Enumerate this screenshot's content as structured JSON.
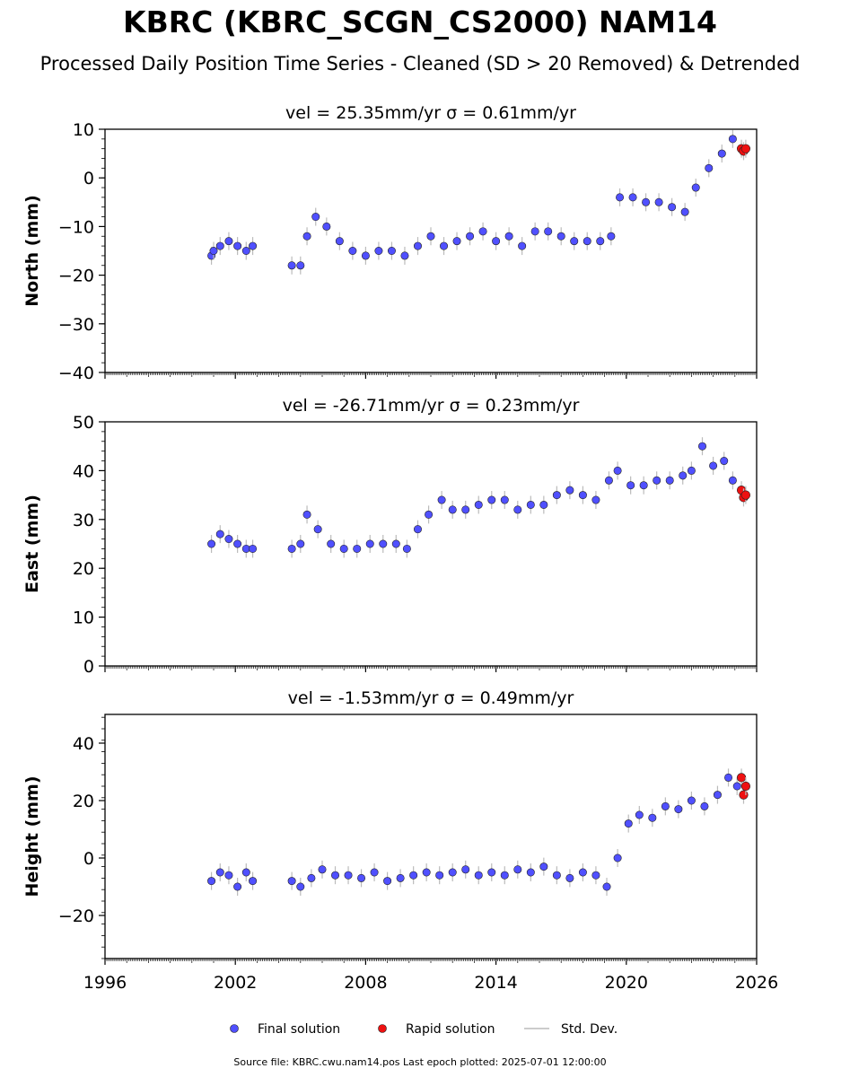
{
  "title": "KBRC (KBRC_SCGN_CS2000) NAM14",
  "subtitle": "Processed Daily Position Time Series - Cleaned (SD > 20 Removed) & Detrended",
  "footer": "Source file: KBRC.cwu.nam14.pos  Last epoch plotted: 2025-07-01 12:00:00",
  "legend": {
    "final": "Final solution",
    "rapid": "Rapid solution",
    "std": "Std. Dev."
  },
  "colors": {
    "final": "#5050ff",
    "rapid": "#ee1111",
    "std": "#bbbbbb",
    "edge": "#222222"
  },
  "chart_data": [
    {
      "type": "scatter",
      "ylabel": "North (mm)",
      "panel_title": "vel = 25.35mm/yr   σ = 0.61mm/yr",
      "xlim": [
        1996,
        2026
      ],
      "ylim": [
        -40,
        10
      ],
      "yticks": [
        "10",
        "0",
        "−10",
        "−20",
        "−30",
        "−40"
      ],
      "xticks": [],
      "series": [
        {
          "name": "Final solution",
          "x": [
            2000.9,
            2001.0,
            2001.3,
            2001.7,
            2002.1,
            2002.5,
            2002.8,
            2004.6,
            2005.0,
            2005.3,
            2005.7,
            2006.2,
            2006.8,
            2007.4,
            2008.0,
            2008.6,
            2009.2,
            2009.8,
            2010.4,
            2011.0,
            2011.6,
            2012.2,
            2012.8,
            2013.4,
            2014.0,
            2014.6,
            2015.2,
            2015.8,
            2016.4,
            2017.0,
            2017.6,
            2018.2,
            2018.8,
            2019.3,
            2019.7,
            2020.3,
            2020.9,
            2021.5,
            2022.1,
            2022.7,
            2023.2,
            2023.8,
            2024.4,
            2024.9
          ],
          "y": [
            -16,
            -15,
            -14,
            -13,
            -14,
            -15,
            -14,
            -18,
            -18,
            -12,
            -8,
            -10,
            -13,
            -15,
            -16,
            -15,
            -15,
            -16,
            -14,
            -12,
            -14,
            -13,
            -12,
            -11,
            -13,
            -12,
            -14,
            -11,
            -11,
            -12,
            -13,
            -13,
            -13,
            -12,
            -4,
            -4,
            -5,
            -5,
            -6,
            -7,
            -2,
            2,
            5,
            8
          ]
        },
        {
          "name": "Rapid solution",
          "x": [
            2025.3,
            2025.4,
            2025.5
          ],
          "y": [
            6,
            5.5,
            6
          ]
        }
      ]
    },
    {
      "type": "scatter",
      "ylabel": "East (mm)",
      "panel_title": "vel = -26.71mm/yr   σ = 0.23mm/yr",
      "xlim": [
        1996,
        2026
      ],
      "ylim": [
        0,
        50
      ],
      "yticks": [
        "50",
        "40",
        "30",
        "20",
        "10",
        "0"
      ],
      "xticks": [],
      "series": [
        {
          "name": "Final solution",
          "x": [
            2000.9,
            2001.3,
            2001.7,
            2002.1,
            2002.5,
            2002.8,
            2004.6,
            2005.0,
            2005.3,
            2005.8,
            2006.4,
            2007.0,
            2007.6,
            2008.2,
            2008.8,
            2009.4,
            2009.9,
            2010.4,
            2010.9,
            2011.5,
            2012.0,
            2012.6,
            2013.2,
            2013.8,
            2014.4,
            2015.0,
            2015.6,
            2016.2,
            2016.8,
            2017.4,
            2018.0,
            2018.6,
            2019.2,
            2019.6,
            2020.2,
            2020.8,
            2021.4,
            2022.0,
            2022.6,
            2023.0,
            2023.5,
            2024.0,
            2024.5,
            2024.9
          ],
          "y": [
            25,
            27,
            26,
            25,
            24,
            24,
            24,
            25,
            31,
            28,
            25,
            24,
            24,
            25,
            25,
            25,
            24,
            28,
            31,
            34,
            32,
            32,
            33,
            34,
            34,
            32,
            33,
            33,
            35,
            36,
            35,
            34,
            38,
            40,
            37,
            37,
            38,
            38,
            39,
            40,
            45,
            41,
            42,
            38
          ]
        },
        {
          "name": "Rapid solution",
          "x": [
            2025.3,
            2025.4,
            2025.5
          ],
          "y": [
            36,
            34.5,
            35
          ]
        }
      ]
    },
    {
      "type": "scatter",
      "ylabel": "Height (mm)",
      "panel_title": "vel = -1.53mm/yr   σ = 0.49mm/yr",
      "xlim": [
        1996,
        2026
      ],
      "ylim": [
        -35,
        50
      ],
      "yticks": [
        "40",
        "20",
        "0",
        "−20"
      ],
      "xticks": [
        "1996",
        "2002",
        "2008",
        "2014",
        "2020",
        "2026"
      ],
      "series": [
        {
          "name": "Final solution",
          "x": [
            2000.9,
            2001.3,
            2001.7,
            2002.1,
            2002.5,
            2002.8,
            2004.6,
            2005.0,
            2005.5,
            2006.0,
            2006.6,
            2007.2,
            2007.8,
            2008.4,
            2009.0,
            2009.6,
            2010.2,
            2010.8,
            2011.4,
            2012.0,
            2012.6,
            2013.2,
            2013.8,
            2014.4,
            2015.0,
            2015.6,
            2016.2,
            2016.8,
            2017.4,
            2018.0,
            2018.6,
            2019.1,
            2019.6,
            2020.1,
            2020.6,
            2021.2,
            2021.8,
            2022.4,
            2023.0,
            2023.6,
            2024.2,
            2024.7,
            2025.1
          ],
          "y": [
            -8,
            -5,
            -6,
            -10,
            -5,
            -8,
            -8,
            -10,
            -7,
            -4,
            -6,
            -6,
            -7,
            -5,
            -8,
            -7,
            -6,
            -5,
            -6,
            -5,
            -4,
            -6,
            -5,
            -6,
            -4,
            -5,
            -3,
            -6,
            -7,
            -5,
            -6,
            -10,
            0,
            12,
            15,
            14,
            18,
            17,
            20,
            18,
            22,
            28,
            25
          ]
        },
        {
          "name": "Rapid solution",
          "x": [
            2025.3,
            2025.4,
            2025.5
          ],
          "y": [
            28,
            22,
            25
          ]
        }
      ]
    }
  ]
}
